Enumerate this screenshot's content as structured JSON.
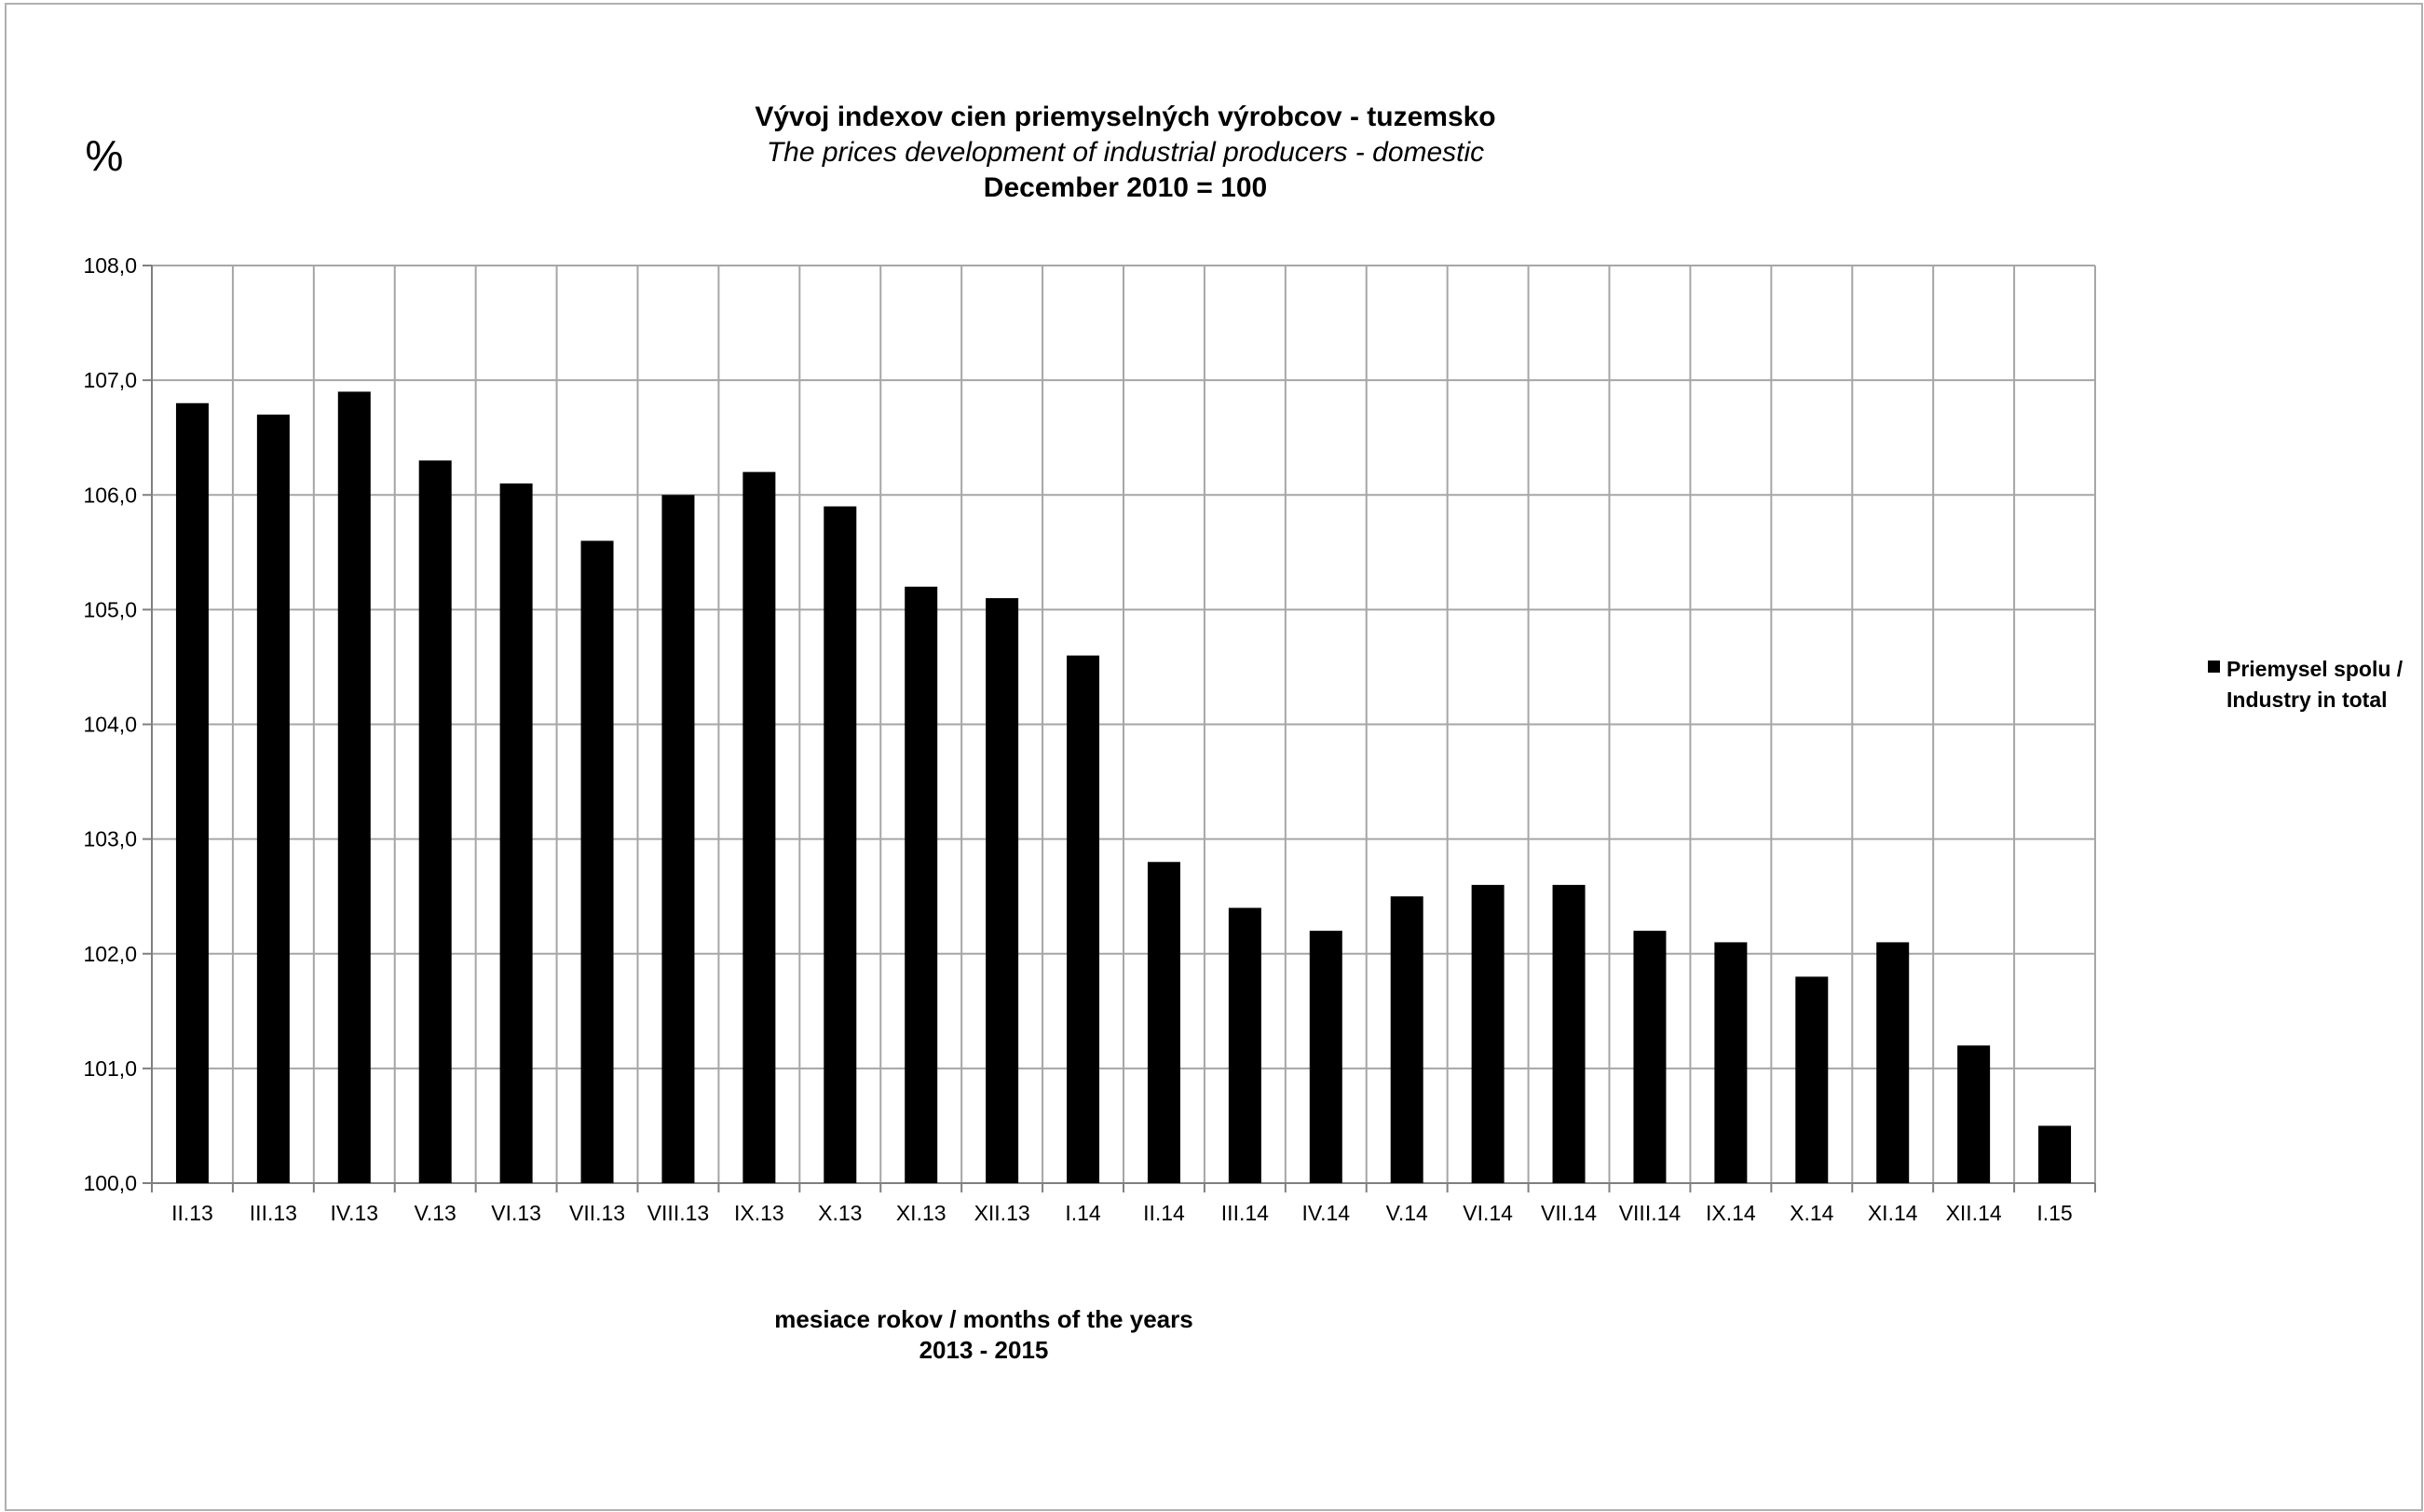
{
  "chart_data": {
    "type": "bar",
    "title": "Vývoj indexov cien priemyselných výrobcov -  tuzemsko",
    "subtitle": "The prices development of industrial producers  - domestic",
    "base_note": "December 2010 = 100",
    "unit_label": "%",
    "xlabel_line1": "mesiace rokov / months of the years",
    "xlabel_line2": "2013 - 2015",
    "ylim": [
      100,
      108
    ],
    "ytick_step": 1,
    "yticks": [
      "100,0",
      "101,0",
      "102,0",
      "103,0",
      "104,0",
      "105,0",
      "106,0",
      "107,0",
      "108,0"
    ],
    "grid": true,
    "legend_position": "right",
    "categories": [
      "II.13",
      "III.13",
      "IV.13",
      "V.13",
      "VI.13",
      "VII.13",
      "VIII.13",
      "IX.13",
      "X.13",
      "XI.13",
      "XII.13",
      "I.14",
      "II.14",
      "III.14",
      "IV.14",
      "V.14",
      "VI.14",
      "VII.14",
      "VIII.14",
      "IX.14",
      "X.14",
      "XI.14",
      "XII.14",
      "I.15"
    ],
    "series": [
      {
        "legend_line1": "Priemysel spolu /",
        "legend_line2": "Industry in total",
        "color": "#000000",
        "values": [
          106.8,
          106.7,
          106.9,
          106.3,
          106.1,
          105.6,
          106.0,
          106.2,
          105.9,
          105.2,
          105.1,
          104.6,
          102.8,
          102.4,
          102.2,
          102.5,
          102.6,
          102.6,
          102.2,
          102.1,
          101.8,
          102.1,
          101.2,
          100.5
        ]
      }
    ]
  },
  "colors": {
    "grid": "#a6a6a6",
    "axis": "#7f7f7f",
    "border": "#b0b0b0"
  }
}
